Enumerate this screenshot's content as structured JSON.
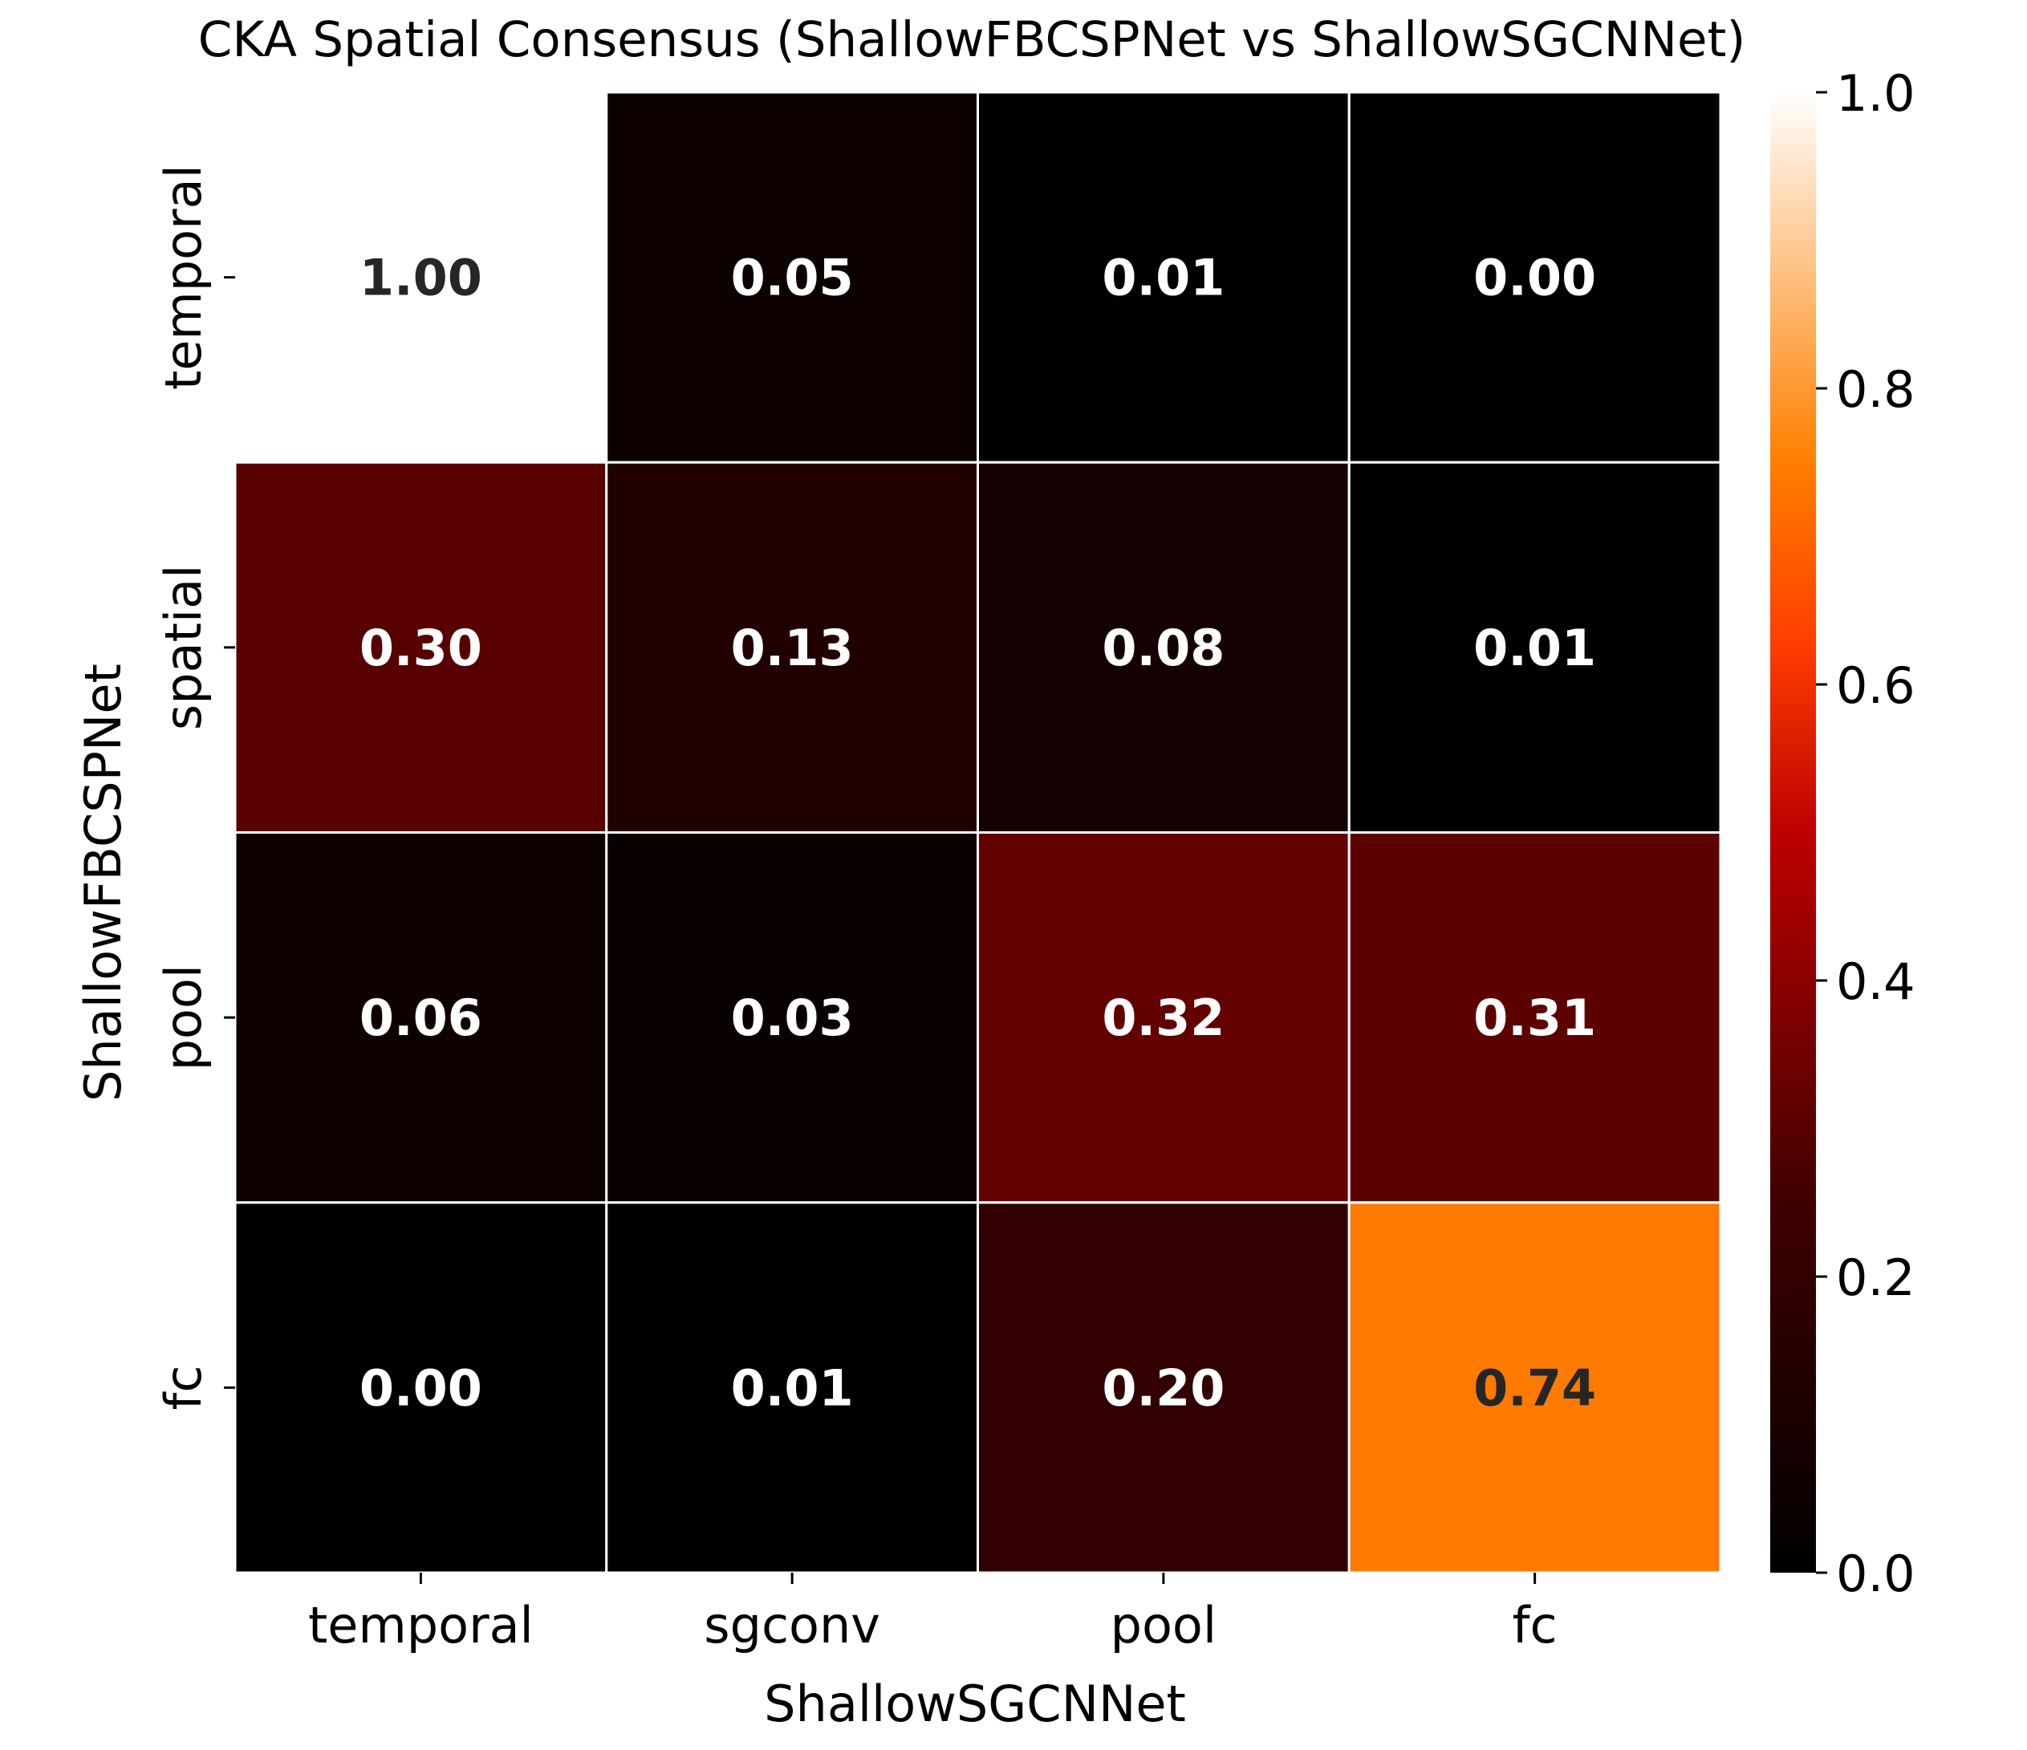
{
  "chart_data": {
    "type": "heatmap",
    "title": "CKA Spatial Consensus (ShallowFBCSPNet vs ShallowSGCNNet)",
    "xlabel": "ShallowSGCNNet",
    "ylabel": "ShallowFBCSPNet",
    "x_categories": [
      "temporal",
      "sgconv",
      "pool",
      "fc"
    ],
    "y_categories": [
      "temporal",
      "spatial",
      "pool",
      "fc"
    ],
    "values": [
      [
        1.0,
        0.05,
        0.01,
        0.0
      ],
      [
        0.3,
        0.13,
        0.08,
        0.01
      ],
      [
        0.06,
        0.03,
        0.32,
        0.31
      ],
      [
        0.0,
        0.01,
        0.2,
        0.74
      ]
    ],
    "value_labels": [
      [
        "1.00",
        "0.05",
        "0.01",
        "0.00"
      ],
      [
        "0.30",
        "0.13",
        "0.08",
        "0.01"
      ],
      [
        "0.06",
        "0.03",
        "0.32",
        "0.31"
      ],
      [
        "0.00",
        "0.01",
        "0.20",
        "0.74"
      ]
    ],
    "colormap": "gist_heat",
    "vmin": 0.0,
    "vmax": 1.0,
    "colorbar_ticks": [
      0.0,
      0.2,
      0.4,
      0.6,
      0.8,
      1.0
    ],
    "colorbar_tick_labels": [
      "0.0",
      "0.2",
      "0.4",
      "0.6",
      "0.8",
      "1.0"
    ],
    "cell_border_color": "#ffffff",
    "annotation_light_color": "#ffffff",
    "annotation_dark_color": "#262626"
  }
}
